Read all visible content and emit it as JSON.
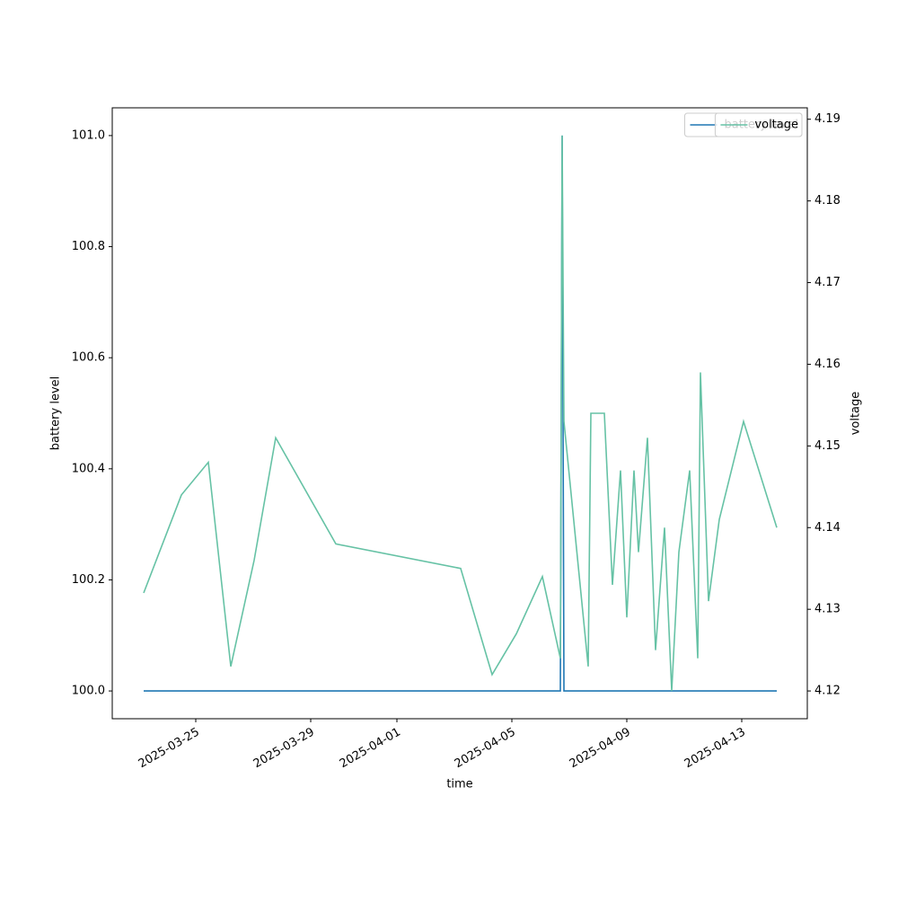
{
  "chart_data": {
    "type": "line",
    "xlabel": "time",
    "ylabel": "battery level",
    "y2label": "voltage",
    "x": [
      "2025-03-23 04:30",
      "2025-03-24 12:00",
      "2025-03-25 10:30",
      "2025-03-26 05:15",
      "2025-03-27 00:45",
      "2025-03-27 18:45",
      "2025-03-29 21:00",
      "2025-04-03 05:15",
      "2025-04-04 07:30",
      "2025-04-05 03:45",
      "2025-04-06 01:30",
      "2025-04-06 16:30",
      "2025-04-06 18:00",
      "2025-04-06 19:30",
      "2025-04-07 15:45",
      "2025-04-07 18:00",
      "2025-04-08 05:15",
      "2025-04-08 12:00",
      "2025-04-08 18:45",
      "2025-04-09 00:00",
      "2025-04-09 06:00",
      "2025-04-09 09:45",
      "2025-04-09 17:15",
      "2025-04-10 00:00",
      "2025-04-10 07:30",
      "2025-04-10 13:30",
      "2025-04-10 19:30",
      "2025-04-11 04:30",
      "2025-04-11 11:15",
      "2025-04-11 13:30",
      "2025-04-11 20:15",
      "2025-04-12 05:15",
      "2025-04-13 01:30",
      "2025-04-14 05:15"
    ],
    "series": [
      {
        "name": "battery level",
        "color": "#1f77b4",
        "axis": "y",
        "values": [
          100,
          100,
          100,
          100,
          100,
          100,
          100,
          100,
          100,
          100,
          100,
          100,
          101,
          100,
          100,
          100,
          100,
          100,
          100,
          100,
          100,
          100,
          100,
          100,
          100,
          100,
          100,
          100,
          100,
          100,
          100,
          100,
          100,
          100
        ]
      },
      {
        "name": "voltage",
        "color": "#66c2a5",
        "axis": "y2",
        "values": [
          4.132,
          4.144,
          4.148,
          4.123,
          4.136,
          4.151,
          4.138,
          4.135,
          4.122,
          4.127,
          4.134,
          4.124,
          4.188,
          4.153,
          4.123,
          4.154,
          4.154,
          4.133,
          4.147,
          4.129,
          4.147,
          4.137,
          4.151,
          4.125,
          4.14,
          4.12,
          4.137,
          4.147,
          4.124,
          4.159,
          4.131,
          4.141,
          4.153,
          4.14
        ]
      }
    ],
    "xlim": [
      "2025-03-22 02:15",
      "2025-04-15 06:45"
    ],
    "xticks": [
      "2025-03-25",
      "2025-03-29",
      "2025-04-01",
      "2025-04-05",
      "2025-04-09",
      "2025-04-13"
    ],
    "ylim": [
      99.95,
      101.05
    ],
    "yticks": [
      {
        "value": 100,
        "label": "100.0"
      },
      100.2,
      100.4,
      100.6,
      100.8,
      {
        "value": 101,
        "label": "101.0"
      }
    ],
    "y2lim": [
      4.1166,
      4.1914
    ],
    "y2ticks": [
      4.12,
      4.13,
      4.14,
      4.15,
      4.16,
      4.17,
      4.18,
      4.19
    ],
    "legend": "upper right",
    "grid": false
  }
}
